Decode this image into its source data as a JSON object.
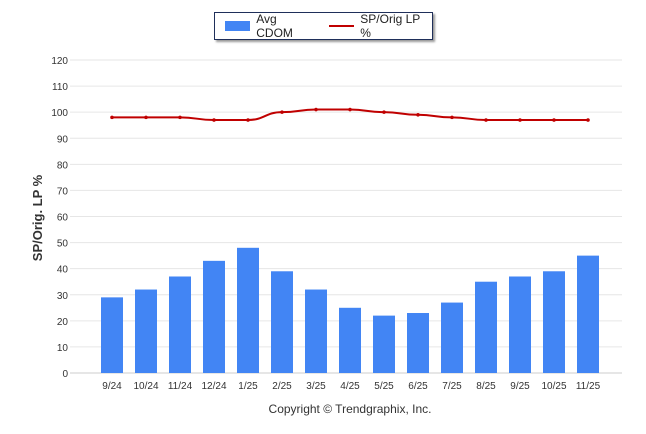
{
  "chart_data": {
    "type": "bar",
    "categories": [
      "9/24",
      "10/24",
      "11/24",
      "12/24",
      "1/25",
      "2/25",
      "3/25",
      "4/25",
      "5/25",
      "6/25",
      "7/25",
      "8/25",
      "9/25",
      "10/25",
      "11/25"
    ],
    "series": [
      {
        "name": "Avg CDOM",
        "type": "bar",
        "color": "#4285f4",
        "values": [
          29,
          32,
          37,
          43,
          48,
          39,
          32,
          25,
          22,
          23,
          27,
          35,
          37,
          39,
          45
        ]
      },
      {
        "name": "SP/Orig LP %",
        "type": "line",
        "color": "#c00000",
        "values": [
          98,
          98,
          98,
          97,
          97,
          100,
          101,
          101,
          100,
          99,
          98,
          97,
          97,
          97,
          97
        ]
      }
    ],
    "ylabel": "SP/Orig. LP %",
    "xlabel": "",
    "ylim": [
      0,
      120
    ],
    "yticks": [
      "0",
      "10",
      "20",
      "30",
      "40",
      "50",
      "60",
      "70",
      "80",
      "90",
      "100",
      "110",
      "120"
    ],
    "grid": true,
    "legend": "top-center",
    "footer": "Copyright © Trendgraphix, Inc."
  }
}
